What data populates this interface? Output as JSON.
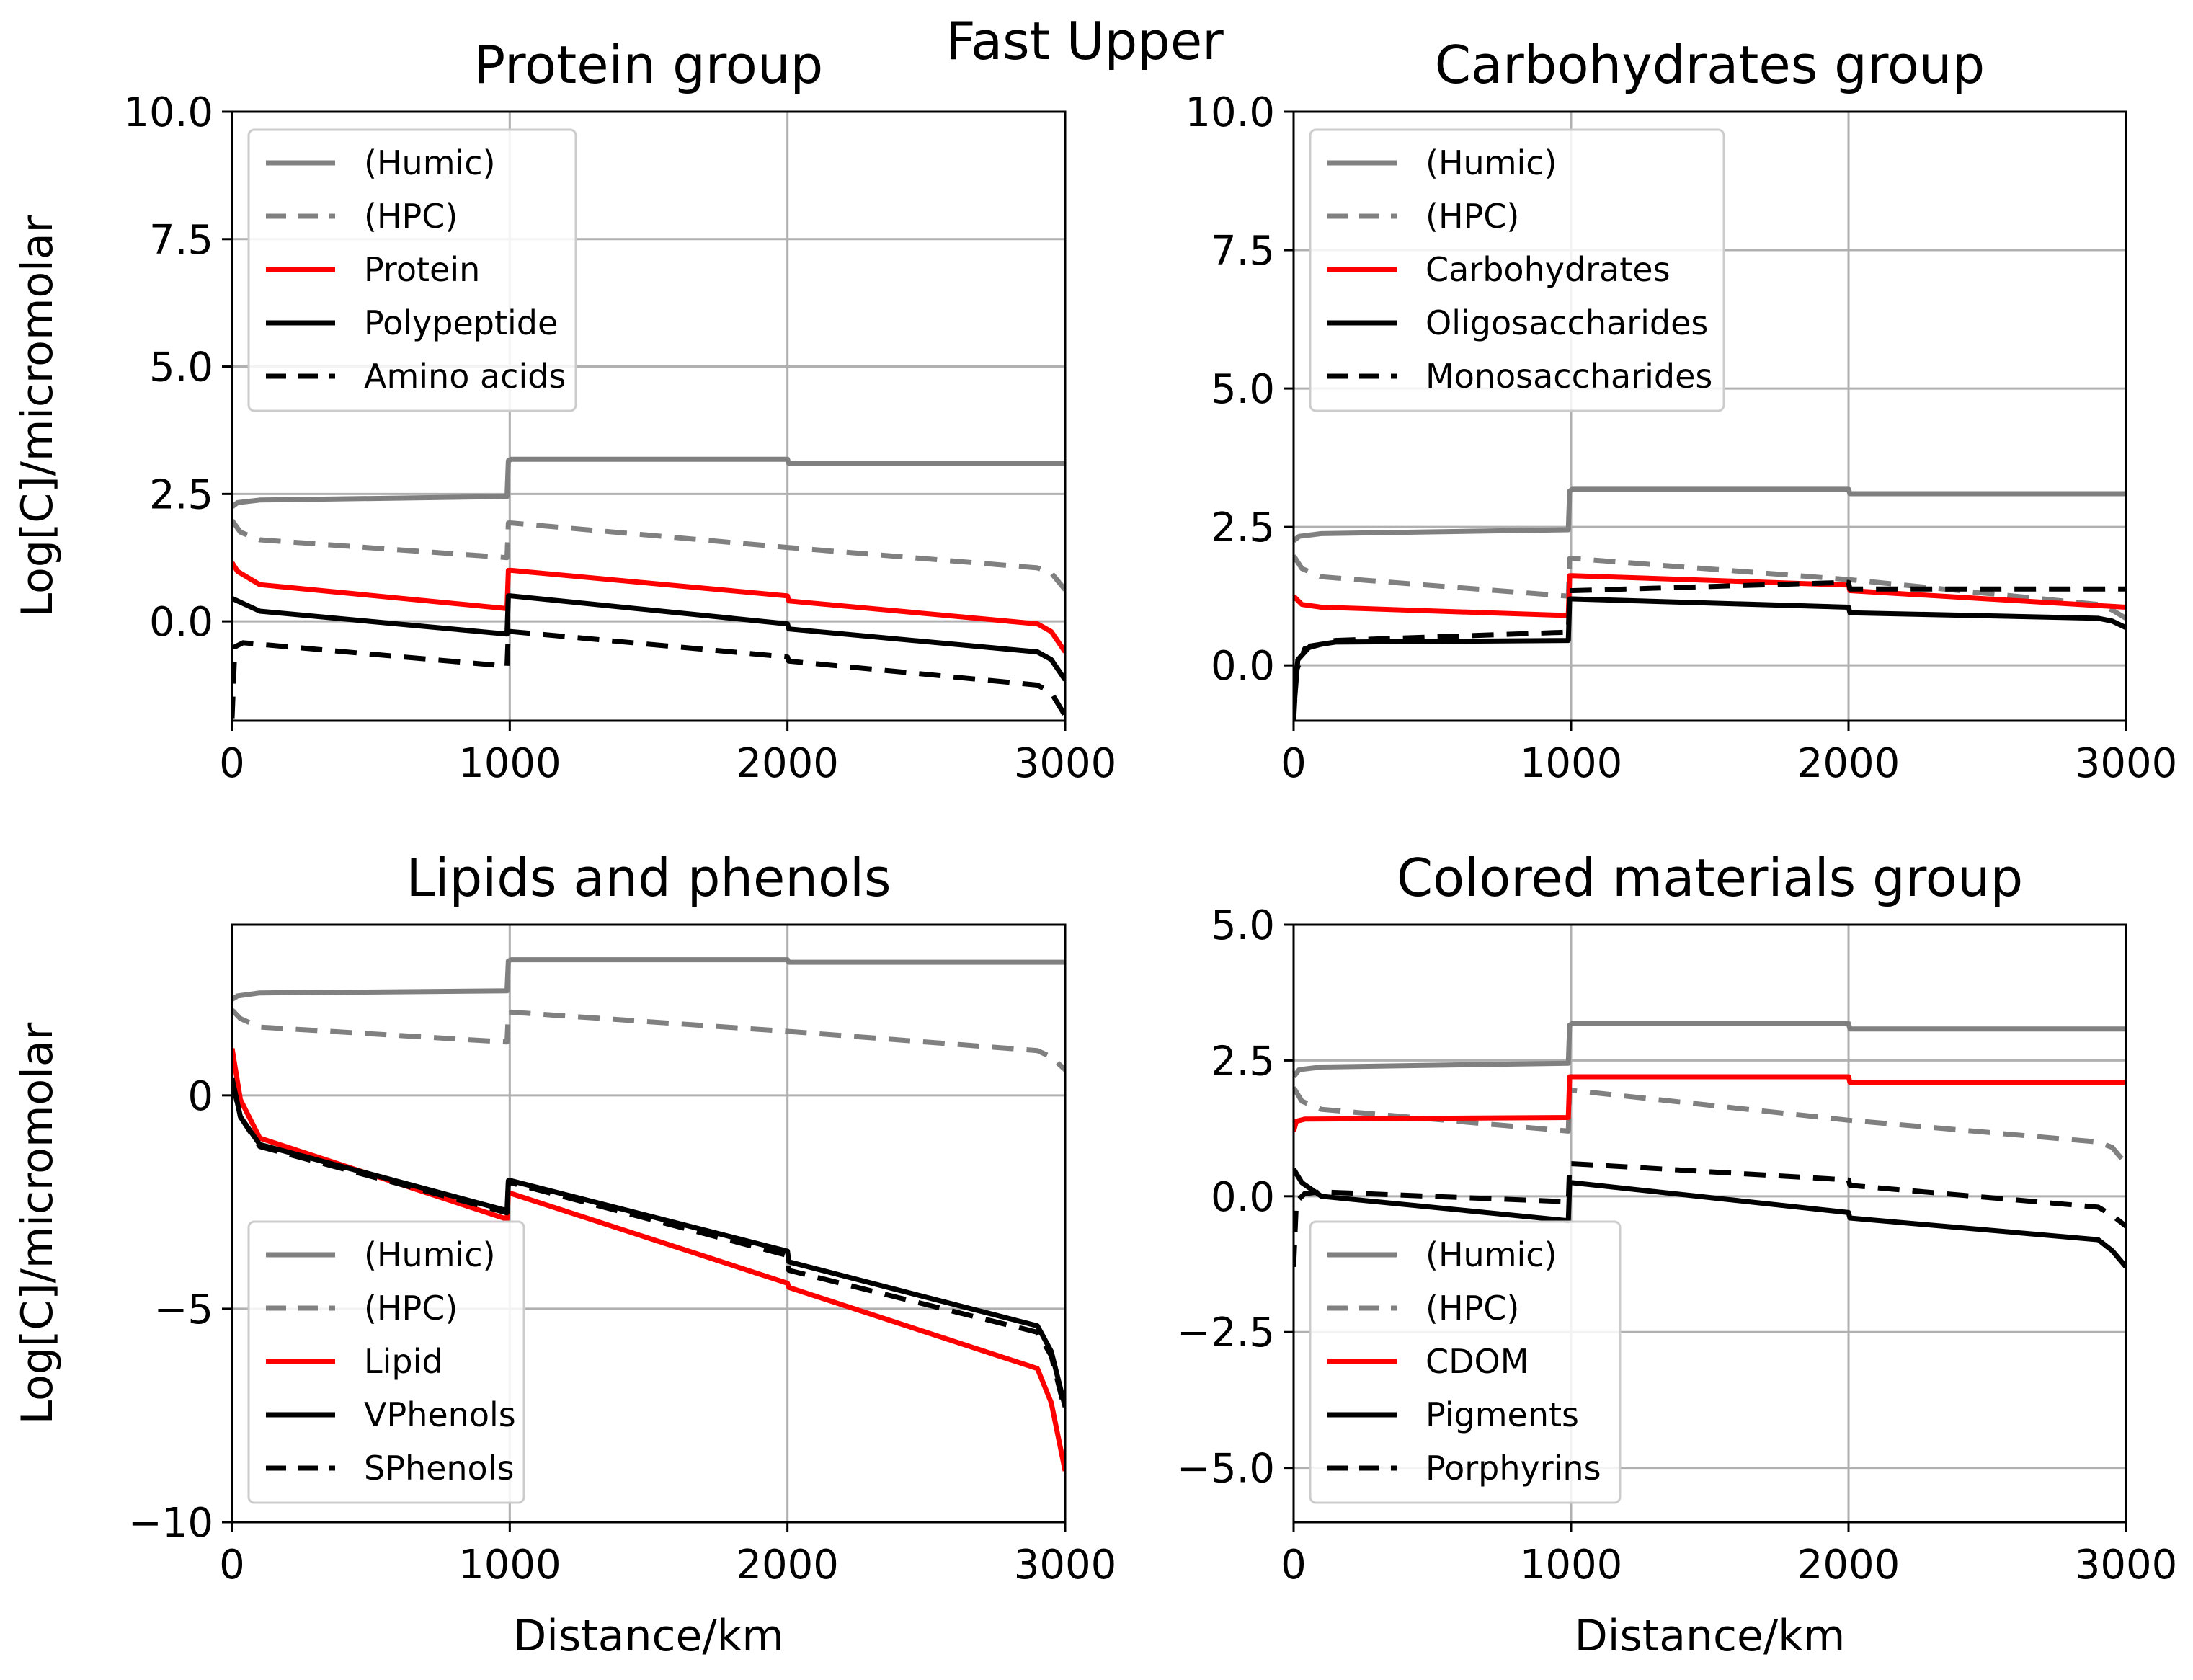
{
  "suptitle": "Fast Upper",
  "chart_data": [
    {
      "type": "line",
      "title": "Protein group",
      "xlabel": "",
      "ylabel": "Log[C]/micromolar",
      "xlim": [
        0,
        3000
      ],
      "ylim": [
        -1.95,
        10.0
      ],
      "xticks": [
        0,
        1000,
        2000,
        3000
      ],
      "xtick_labels": [
        "0",
        "1000",
        "2000",
        "3000"
      ],
      "yticks": [
        0.0,
        2.5,
        5.0,
        7.5,
        10.0
      ],
      "ytick_labels": [
        "0.0",
        "2.5",
        "5.0",
        "7.5",
        "10.0"
      ],
      "grid": true,
      "legend_position": "upper-left",
      "series": [
        {
          "name": "(Humic)",
          "color": "#808080",
          "style": "solid",
          "x": [
            0,
            20,
            100,
            990,
            995,
            1005,
            2000,
            2005,
            3000
          ],
          "y": [
            2.25,
            2.33,
            2.38,
            2.45,
            3.15,
            3.18,
            3.18,
            3.1,
            3.1
          ]
        },
        {
          "name": "(HPC)",
          "color": "#808080",
          "style": "dashed",
          "x": [
            0,
            30,
            100,
            990,
            995,
            1005,
            2000,
            2900,
            2950,
            3000
          ],
          "y": [
            1.98,
            1.75,
            1.6,
            1.25,
            1.93,
            1.93,
            1.45,
            1.05,
            0.95,
            0.62
          ]
        },
        {
          "name": "Protein",
          "color": "#ff0000",
          "style": "solid",
          "x": [
            0,
            20,
            100,
            990,
            995,
            1005,
            2000,
            2005,
            2900,
            2950,
            3000
          ],
          "y": [
            1.15,
            0.98,
            0.72,
            0.25,
            1.0,
            1.0,
            0.5,
            0.4,
            -0.05,
            -0.2,
            -0.6
          ]
        },
        {
          "name": "Polypeptide",
          "color": "#000000",
          "style": "solid",
          "x": [
            0,
            20,
            100,
            990,
            995,
            1005,
            2000,
            2005,
            2900,
            2950,
            3000
          ],
          "y": [
            0.45,
            0.4,
            0.2,
            -0.25,
            0.5,
            0.5,
            -0.05,
            -0.15,
            -0.6,
            -0.75,
            -1.15
          ]
        },
        {
          "name": "Amino acids",
          "color": "#000000",
          "style": "dashed",
          "x": [
            0,
            10,
            40,
            100,
            990,
            995,
            1005,
            2000,
            2005,
            2900,
            2950,
            3000
          ],
          "y": [
            -1.9,
            -0.5,
            -0.42,
            -0.45,
            -0.88,
            -0.2,
            -0.2,
            -0.7,
            -0.78,
            -1.25,
            -1.4,
            -1.85
          ]
        }
      ]
    },
    {
      "type": "line",
      "title": "Carbohydrates group",
      "xlabel": "",
      "ylabel": "",
      "xlim": [
        0,
        3000
      ],
      "ylim": [
        -1.0,
        10.0
      ],
      "xticks": [
        0,
        1000,
        2000,
        3000
      ],
      "xtick_labels": [
        "0",
        "1000",
        "2000",
        "3000"
      ],
      "yticks": [
        0.0,
        2.5,
        5.0,
        7.5,
        10.0
      ],
      "ytick_labels": [
        "0.0",
        "2.5",
        "5.0",
        "7.5",
        "10.0"
      ],
      "grid": true,
      "legend_position": "upper-left",
      "series": [
        {
          "name": "(Humic)",
          "color": "#808080",
          "style": "solid",
          "x": [
            0,
            20,
            100,
            990,
            995,
            1005,
            2000,
            2005,
            3000
          ],
          "y": [
            2.25,
            2.33,
            2.38,
            2.45,
            3.15,
            3.18,
            3.18,
            3.1,
            3.1
          ]
        },
        {
          "name": "(HPC)",
          "color": "#808080",
          "style": "dashed",
          "x": [
            0,
            30,
            100,
            990,
            995,
            1005,
            2000,
            2900,
            2950,
            3000
          ],
          "y": [
            1.98,
            1.75,
            1.6,
            1.25,
            1.93,
            1.93,
            1.55,
            1.1,
            1.0,
            0.85
          ]
        },
        {
          "name": "Carbohydrates",
          "color": "#ff0000",
          "style": "solid",
          "x": [
            0,
            30,
            100,
            990,
            995,
            1005,
            2000,
            2005,
            3000
          ],
          "y": [
            1.25,
            1.1,
            1.05,
            0.9,
            1.62,
            1.62,
            1.45,
            1.35,
            1.05
          ]
        },
        {
          "name": "Oligosaccharides",
          "color": "#000000",
          "style": "solid",
          "x": [
            0,
            15,
            60,
            150,
            990,
            995,
            1005,
            2000,
            2005,
            2900,
            2950,
            3000
          ],
          "y": [
            -0.85,
            0.1,
            0.35,
            0.42,
            0.45,
            1.2,
            1.2,
            1.05,
            0.95,
            0.85,
            0.8,
            0.68
          ]
        },
        {
          "name": "Monosaccharides",
          "color": "#000000",
          "style": "dashed",
          "x": [
            0,
            10,
            40,
            150,
            990,
            995,
            1005,
            2000,
            2005,
            3000
          ],
          "y": [
            -1.0,
            -0.1,
            0.3,
            0.45,
            0.6,
            1.35,
            1.35,
            1.5,
            1.38,
            1.38
          ]
        }
      ]
    },
    {
      "type": "line",
      "title": "Lipids and phenols",
      "xlabel": "Distance/km",
      "ylabel": "Log[C]/micromolar",
      "xlim": [
        0,
        3000
      ],
      "ylim": [
        -10.0,
        4.0
      ],
      "xticks": [
        0,
        1000,
        2000,
        3000
      ],
      "xtick_labels": [
        "0",
        "1000",
        "2000",
        "3000"
      ],
      "yticks": [
        0,
        -5,
        -10
      ],
      "ytick_labels": [
        "0",
        "−5",
        "−10"
      ],
      "grid": true,
      "legend_position": "lower-left",
      "series": [
        {
          "name": "(Humic)",
          "color": "#808080",
          "style": "solid",
          "x": [
            0,
            20,
            100,
            990,
            995,
            1005,
            2000,
            2005,
            3000
          ],
          "y": [
            2.25,
            2.33,
            2.4,
            2.45,
            3.15,
            3.18,
            3.18,
            3.12,
            3.12
          ]
        },
        {
          "name": "(HPC)",
          "color": "#808080",
          "style": "dashed",
          "x": [
            0,
            30,
            100,
            990,
            995,
            1005,
            2000,
            2900,
            2950,
            3000
          ],
          "y": [
            2.0,
            1.8,
            1.6,
            1.25,
            1.95,
            1.95,
            1.5,
            1.05,
            0.9,
            0.6
          ]
        },
        {
          "name": "Lipid",
          "color": "#ff0000",
          "style": "solid",
          "x": [
            0,
            30,
            100,
            990,
            995,
            1005,
            2000,
            2005,
            2900,
            2950,
            3000
          ],
          "y": [
            1.1,
            -0.1,
            -1.0,
            -2.9,
            -2.3,
            -2.3,
            -4.4,
            -4.5,
            -6.4,
            -7.2,
            -8.8
          ]
        },
        {
          "name": "VPhenols",
          "color": "#000000",
          "style": "solid",
          "x": [
            0,
            30,
            100,
            990,
            995,
            1005,
            2000,
            2005,
            2900,
            2950,
            3000
          ],
          "y": [
            0.4,
            -0.5,
            -1.15,
            -2.7,
            -2.0,
            -2.0,
            -3.65,
            -3.9,
            -5.4,
            -6.0,
            -7.3
          ]
        },
        {
          "name": "SPhenols",
          "color": "#000000",
          "style": "dashed",
          "x": [
            0,
            30,
            100,
            990,
            995,
            1005,
            2000,
            2005,
            2900,
            2950,
            3000
          ],
          "y": [
            0.35,
            -0.5,
            -1.2,
            -2.75,
            -2.05,
            -2.05,
            -3.75,
            -4.1,
            -5.55,
            -6.1,
            -7.4
          ]
        }
      ]
    },
    {
      "type": "line",
      "title": "Colored materials group",
      "xlabel": "Distance/km",
      "ylabel": "",
      "xlim": [
        0,
        3000
      ],
      "ylim": [
        -6.0,
        5.0
      ],
      "xticks": [
        0,
        1000,
        2000,
        3000
      ],
      "xtick_labels": [
        "0",
        "1000",
        "2000",
        "3000"
      ],
      "yticks": [
        5.0,
        2.5,
        0.0,
        -2.5,
        -5.0
      ],
      "ytick_labels": [
        "5.0",
        "2.5",
        "0.0",
        "−2.5",
        "−5.0"
      ],
      "grid": true,
      "legend_position": "lower-left",
      "series": [
        {
          "name": "(Humic)",
          "color": "#808080",
          "style": "solid",
          "x": [
            0,
            20,
            100,
            990,
            995,
            1005,
            2000,
            2005,
            3000
          ],
          "y": [
            2.2,
            2.33,
            2.38,
            2.45,
            3.15,
            3.18,
            3.18,
            3.08,
            3.08
          ]
        },
        {
          "name": "(HPC)",
          "color": "#808080",
          "style": "dashed",
          "x": [
            0,
            30,
            100,
            990,
            995,
            1005,
            2000,
            2900,
            2950,
            3000
          ],
          "y": [
            2.0,
            1.75,
            1.6,
            1.2,
            1.95,
            1.95,
            1.4,
            1.0,
            0.9,
            0.6
          ]
        },
        {
          "name": "CDOM",
          "color": "#ff0000",
          "style": "solid",
          "x": [
            0,
            10,
            40,
            990,
            995,
            1005,
            2000,
            2005,
            3000
          ],
          "y": [
            1.2,
            1.38,
            1.42,
            1.45,
            2.2,
            2.2,
            2.2,
            2.1,
            2.1
          ]
        },
        {
          "name": "Pigments",
          "color": "#000000",
          "style": "solid",
          "x": [
            0,
            30,
            100,
            990,
            995,
            1005,
            2000,
            2005,
            2900,
            2950,
            3000
          ],
          "y": [
            0.5,
            0.25,
            0.0,
            -0.45,
            0.25,
            0.25,
            -0.3,
            -0.4,
            -0.8,
            -1.0,
            -1.3
          ]
        },
        {
          "name": "Porphyrins",
          "color": "#000000",
          "style": "dashed",
          "x": [
            0,
            10,
            40,
            100,
            990,
            995,
            1005,
            2000,
            2005,
            2900,
            2950,
            3000
          ],
          "y": [
            -1.3,
            -0.1,
            0.05,
            0.08,
            -0.1,
            0.6,
            0.6,
            0.3,
            0.2,
            -0.2,
            -0.35,
            -0.55
          ]
        }
      ]
    }
  ]
}
